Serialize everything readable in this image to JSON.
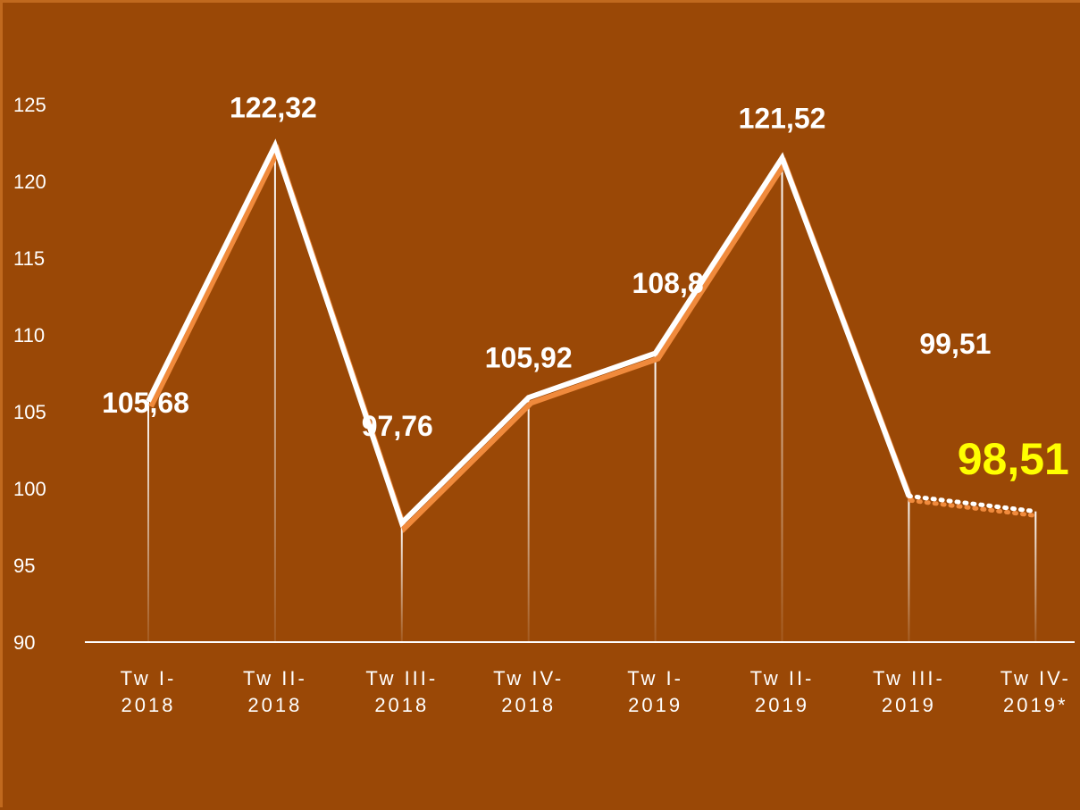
{
  "chart_data": {
    "type": "line",
    "categories": [
      "Tw I-2018",
      "Tw II-2018",
      "Tw III-2018",
      "Tw IV-2018",
      "Tw I-2019",
      "Tw II-2019",
      "Tw III-2019",
      "Tw IV-2019*"
    ],
    "series": [
      {
        "color": "#ffffff",
        "values": [
          105.68,
          122.32,
          97.76,
          105.92,
          108.8,
          121.52,
          99.51,
          98.51
        ],
        "value_labels": [
          "105,68",
          "122,32",
          "97,76",
          "105,92",
          "108,8",
          "121,52",
          "99,51",
          "98,51"
        ]
      }
    ],
    "ylim": [
      90,
      125
    ],
    "yticks": [
      90,
      95,
      100,
      105,
      110,
      115,
      120,
      125
    ]
  }
}
